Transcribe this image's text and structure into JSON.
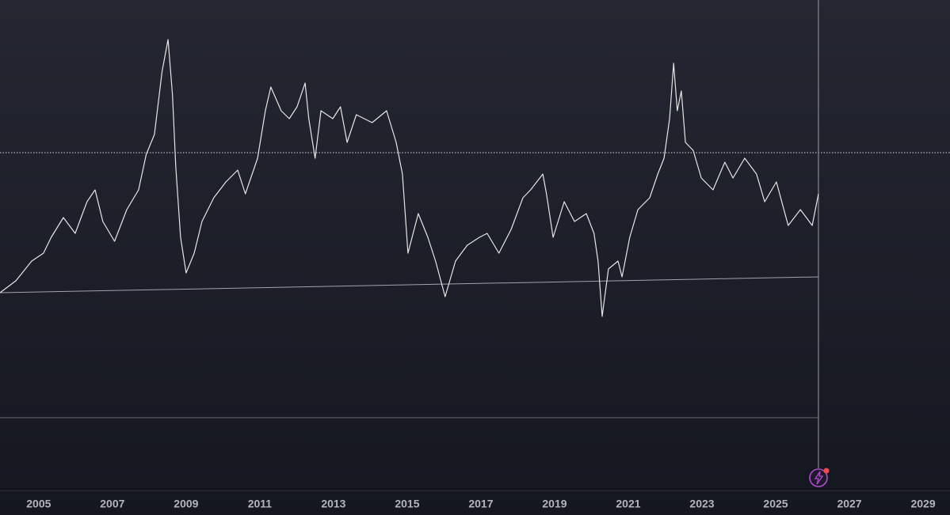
{
  "chart_data": {
    "type": "line",
    "x": [
      2003.95,
      2004.38,
      2004.81,
      2005.13,
      2005.34,
      2005.67,
      2005.99,
      2006.31,
      2006.53,
      2006.74,
      2007.06,
      2007.39,
      2007.71,
      2007.92,
      2008.14,
      2008.35,
      2008.51,
      2008.63,
      2008.72,
      2008.85,
      2009.0,
      2009.22,
      2009.43,
      2009.75,
      2010.08,
      2010.4,
      2010.61,
      2010.94,
      2011.15,
      2011.3,
      2011.58,
      2011.8,
      2012.01,
      2012.23,
      2012.33,
      2012.5,
      2012.66,
      2012.98,
      2013.19,
      2013.37,
      2013.62,
      2014.05,
      2014.44,
      2014.7,
      2014.87,
      2015.02,
      2015.3,
      2015.56,
      2015.77,
      2016.03,
      2016.31,
      2016.63,
      2016.96,
      2017.17,
      2017.49,
      2017.82,
      2018.14,
      2018.35,
      2018.68,
      2018.78,
      2018.96,
      2019.26,
      2019.54,
      2019.86,
      2020.07,
      2020.18,
      2020.29,
      2020.46,
      2020.72,
      2020.83,
      2021.04,
      2021.26,
      2021.58,
      2021.8,
      2021.97,
      2022.12,
      2022.23,
      2022.33,
      2022.44,
      2022.55,
      2022.76,
      2022.98,
      2023.3,
      2023.62,
      2023.84,
      2024.16,
      2024.48,
      2024.7,
      2025.02,
      2025.34,
      2025.67,
      2025.99,
      2026.16
    ],
    "series": [
      {
        "color": "#e6e6e6",
        "values": [
          250,
          265,
          290,
          300,
          320,
          345,
          325,
          365,
          380,
          340,
          315,
          355,
          380,
          425,
          450,
          530,
          570,
          500,
          410,
          320,
          275,
          300,
          340,
          370,
          390,
          405,
          375,
          420,
          480,
          510,
          480,
          470,
          485,
          515,
          470,
          420,
          480,
          470,
          485,
          440,
          475,
          465,
          480,
          440,
          400,
          300,
          350,
          320,
          290,
          245,
          290,
          310,
          320,
          325,
          300,
          330,
          370,
          380,
          400,
          375,
          320,
          365,
          340,
          350,
          325,
          290,
          220,
          280,
          290,
          270,
          320,
          355,
          370,
          400,
          420,
          470,
          540,
          480,
          505,
          440,
          430,
          395,
          380,
          415,
          395,
          420,
          400,
          365,
          390,
          335,
          355,
          335,
          375
        ]
      }
    ],
    "hlines": [
      {
        "value": 427,
        "style": "dotted",
        "color": "#d8d8d8"
      },
      {
        "value": 92,
        "style": "solid",
        "color": "#6a6d78"
      }
    ],
    "trendline": {
      "x": [
        2003.95,
        2026.16
      ],
      "values": [
        250,
        270
      ],
      "color": "#a0a3ab"
    },
    "xlim": [
      2003.95,
      2029.73
    ],
    "ylim": [
      0,
      620
    ],
    "xticks": [
      2005,
      2007,
      2009,
      2011,
      2013,
      2015,
      2017,
      2019,
      2021,
      2023,
      2025,
      2027,
      2029
    ]
  }
}
